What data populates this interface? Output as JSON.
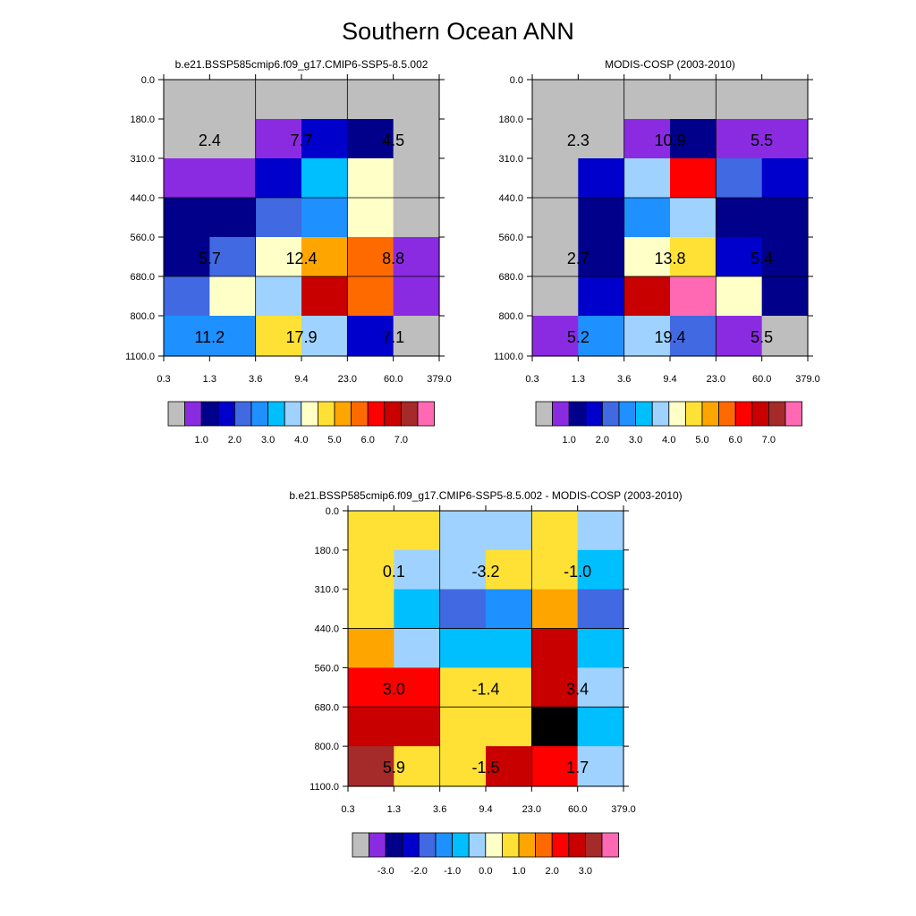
{
  "figure": {
    "title": "Southern Ocean ANN"
  },
  "chart_data": [
    {
      "type": "heatmap",
      "title": "b.e21.BSSP585cmip6.f09_g17.CMIP6-SSP5-8.5.002",
      "x_ticks": [
        "0.3",
        "1.3",
        "3.6",
        "9.4",
        "23.0",
        "60.0",
        "379.0"
      ],
      "y_ticks": [
        "0.0",
        "180.0",
        "310.0",
        "440.0",
        "560.0",
        "680.0",
        "800.0",
        "1100.0"
      ],
      "cells": [
        [
          0,
          0,
          0,
          0,
          0,
          0
        ],
        [
          0,
          0,
          1,
          3,
          2,
          0
        ],
        [
          1,
          1,
          3,
          6,
          8,
          0
        ],
        [
          2,
          2,
          4,
          5,
          8,
          0
        ],
        [
          2,
          4,
          8,
          10,
          11,
          1
        ],
        [
          4,
          8,
          7,
          13,
          11,
          1
        ],
        [
          5,
          5,
          9,
          7,
          3,
          0
        ]
      ],
      "block_labels": [
        [
          "2.4",
          "7.7",
          "4.5"
        ],
        [
          "5.7",
          "12.4",
          "8.8"
        ],
        [
          "11.2",
          "17.9",
          "7.1"
        ]
      ],
      "colorbar": {
        "labels": [
          "1.0",
          "2.0",
          "3.0",
          "4.0",
          "5.0",
          "6.0",
          "7.0"
        ]
      }
    },
    {
      "type": "heatmap",
      "title": "MODIS-COSP (2003-2010)",
      "x_ticks": [
        "0.3",
        "1.3",
        "3.6",
        "9.4",
        "23.0",
        "60.0",
        "379.0"
      ],
      "y_ticks": [
        "0.0",
        "180.0",
        "310.0",
        "440.0",
        "560.0",
        "680.0",
        "800.0",
        "1100.0"
      ],
      "cells": [
        [
          0,
          0,
          0,
          0,
          0,
          0
        ],
        [
          0,
          0,
          1,
          2,
          1,
          1
        ],
        [
          0,
          3,
          7,
          12,
          4,
          3
        ],
        [
          0,
          2,
          5,
          7,
          2,
          2
        ],
        [
          0,
          2,
          8,
          9,
          3,
          2
        ],
        [
          0,
          3,
          13,
          15,
          8,
          2
        ],
        [
          1,
          5,
          7,
          4,
          1,
          0
        ]
      ],
      "block_labels": [
        [
          "2.3",
          "10.9",
          "5.5"
        ],
        [
          "2.7",
          "13.8",
          "5.4"
        ],
        [
          "5.2",
          "19.4",
          "5.5"
        ]
      ],
      "colorbar": {
        "labels": [
          "1.0",
          "2.0",
          "3.0",
          "4.0",
          "5.0",
          "6.0",
          "7.0"
        ]
      }
    },
    {
      "type": "heatmap",
      "title": "b.e21.BSSP585cmip6.f09_g17.CMIP6-SSP5-8.5.002 - MODIS-COSP (2003-2010)",
      "x_ticks": [
        "0.3",
        "1.3",
        "3.6",
        "9.4",
        "23.0",
        "60.0",
        "379.0"
      ],
      "y_ticks": [
        "0.0",
        "180.0",
        "310.0",
        "440.0",
        "560.0",
        "680.0",
        "800.0",
        "1100.0"
      ],
      "cells": [
        [
          9,
          9,
          7,
          7,
          9,
          7
        ],
        [
          9,
          7,
          7,
          9,
          9,
          6
        ],
        [
          9,
          6,
          4,
          5,
          10,
          4
        ],
        [
          10,
          7,
          6,
          6,
          13,
          6
        ],
        [
          12,
          12,
          9,
          9,
          13,
          7
        ],
        [
          13,
          13,
          9,
          9,
          16,
          6
        ],
        [
          14,
          9,
          9,
          13,
          12,
          7
        ]
      ],
      "block_labels": [
        [
          "0.1",
          "-3.2",
          "-1.0"
        ],
        [
          "3.0",
          "-1.4",
          "3.4"
        ],
        [
          "5.9",
          "-1.5",
          "1.7"
        ]
      ],
      "colorbar": {
        "labels": [
          "-3.0",
          "-2.0",
          "-1.0",
          "0.0",
          "1.0",
          "2.0",
          "3.0"
        ]
      }
    }
  ],
  "palette": [
    "#bebebe",
    "#8a2be2",
    "#00008b",
    "#0000cd",
    "#4169e1",
    "#1e90ff",
    "#00bfff",
    "#a0d2ff",
    "#ffffc8",
    "#ffe135",
    "#ffa500",
    "#ff6a00",
    "#ff0000",
    "#c80000",
    "#a52a2a",
    "#ff69b4"
  ]
}
